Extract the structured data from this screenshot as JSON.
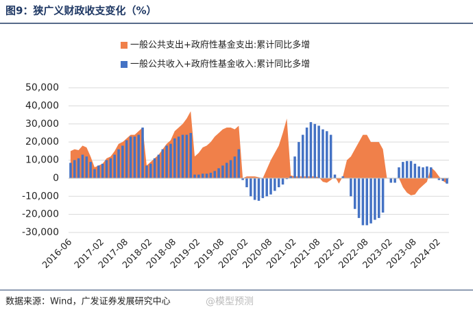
{
  "title": "图9：狭广义财政收支变化（%）",
  "source": "数据来源：Wind，广发证券发展研究中心",
  "watermark": "@模型预测",
  "chart_data": {
    "type": "area-bar",
    "categories": [
      "2016-06",
      null,
      null,
      null,
      null,
      null,
      null,
      null,
      "2017-02",
      null,
      null,
      null,
      null,
      null,
      "2017-08",
      null,
      null,
      null,
      null,
      null,
      "2018-02",
      null,
      null,
      null,
      null,
      null,
      "2018-08",
      null,
      null,
      null,
      null,
      null,
      "2019-02",
      null,
      null,
      null,
      null,
      null,
      "2019-08",
      null,
      null,
      null,
      null,
      null,
      "2020-02",
      null,
      null,
      null,
      null,
      null,
      "2020-08",
      null,
      null,
      null,
      null,
      null,
      "2021-02",
      null,
      null,
      null,
      null,
      null,
      "2021-08",
      null,
      null,
      null,
      null,
      null,
      "2022-02",
      null,
      null,
      null,
      null,
      null,
      "2022-08",
      null,
      null,
      null,
      null,
      null,
      "2023-02",
      null,
      null,
      null,
      null,
      null,
      "2023-08",
      null,
      null,
      null,
      null,
      null,
      "2024-02",
      null,
      null
    ],
    "series": [
      {
        "name": "一般公共支出+政府性基金支出:累计同比多增",
        "color": "#f0804a",
        "mark": "area",
        "values": [
          15000,
          16000,
          15500,
          18000,
          17000,
          12000,
          6000,
          7000,
          8000,
          11000,
          12000,
          15000,
          19000,
          20000,
          22000,
          24000,
          24000,
          26000,
          28000,
          7000,
          9000,
          11000,
          13000,
          16000,
          19000,
          21000,
          26000,
          28000,
          30000,
          33000,
          37000,
          12000,
          14000,
          17000,
          18000,
          20000,
          23000,
          25000,
          27000,
          28000,
          28000,
          27000,
          29000,
          0,
          1000,
          1000,
          1000,
          500,
          0,
          5000,
          10000,
          14000,
          18000,
          25000,
          33000,
          1500,
          1000,
          1000,
          1000,
          1000,
          1000,
          1000,
          500,
          -2000,
          -2500,
          -1000,
          1000,
          -3000,
          1000,
          10000,
          12000,
          16000,
          20000,
          24000,
          24000,
          20000,
          20000,
          20000,
          16000,
          0,
          0,
          0,
          0,
          -5000,
          -8000,
          -9500,
          -9000,
          -6000,
          -4000,
          -2000,
          6000,
          4000,
          1000,
          -1500,
          -3000
        ]
      },
      {
        "name": "一般公共收入+政府性基金收入:累计同比多增",
        "color": "#4472c4",
        "mark": "bar",
        "values": [
          8500,
          10000,
          11000,
          13000,
          12000,
          9000,
          5000,
          7000,
          8000,
          10000,
          11000,
          13000,
          16000,
          18000,
          21000,
          23000,
          23000,
          24000,
          28000,
          7000,
          8000,
          11000,
          13000,
          16000,
          18000,
          19000,
          22000,
          23000,
          24000,
          24000,
          25000,
          2000,
          2000,
          2500,
          2500,
          3000,
          4000,
          5500,
          7000,
          8500,
          10000,
          12000,
          16000,
          -1000,
          -5000,
          -10000,
          -12000,
          -12500,
          -11000,
          -10000,
          -9000,
          -7000,
          -5000,
          -3500,
          -500,
          1000,
          12000,
          20000,
          24000,
          28000,
          31000,
          30000,
          29000,
          27000,
          26000,
          24000,
          2000,
          0,
          1000,
          0,
          -10000,
          -17000,
          -22000,
          -26000,
          -26000,
          -25000,
          -23000,
          -22000,
          -19000,
          0,
          -2500,
          -2500,
          6000,
          9000,
          9500,
          9500,
          8000,
          6500,
          6000,
          6500,
          6000,
          0,
          -1000,
          -1500,
          -3000
        ]
      }
    ],
    "ylim": [
      -30000,
      50000
    ],
    "yticks": [
      {
        "value": -30000,
        "label": "-30,000"
      },
      {
        "value": -20000,
        "label": "-20,000"
      },
      {
        "value": -10000,
        "label": "-10,000"
      },
      0,
      {
        "value": 10000,
        "label": "10,000"
      },
      {
        "value": 20000,
        "label": "20,000"
      },
      {
        "value": 30000,
        "label": "30,000"
      },
      {
        "value": 40000,
        "label": "40,000"
      },
      {
        "value": 50000,
        "label": "50,000"
      }
    ],
    "grid": true
  }
}
